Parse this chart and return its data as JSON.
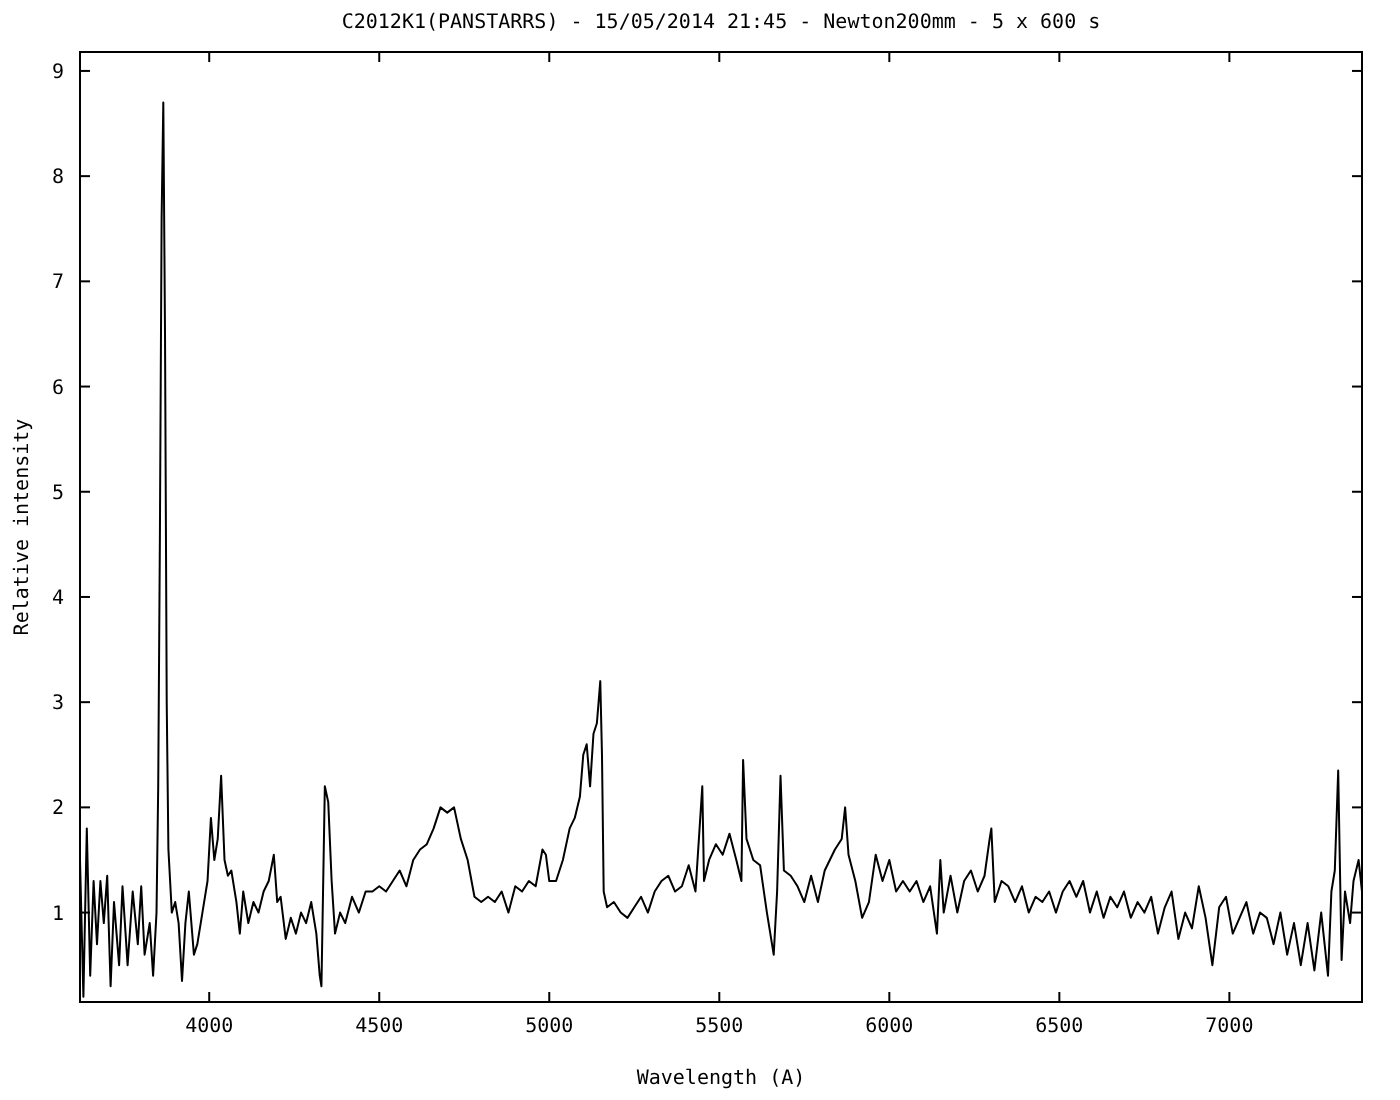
{
  "chart_data": {
    "type": "line",
    "title": "C2012K1(PANSTARRS) - 15/05/2014 21:45 - Newton200mm - 5 x 600 s",
    "xlabel": "Wavelength (A)",
    "ylabel": "Relative intensity",
    "xlim": [
      3620,
      7390
    ],
    "ylim": [
      0.15,
      9.18
    ],
    "xticks": [
      4000,
      4500,
      5000,
      5500,
      6000,
      6500,
      7000
    ],
    "yticks": [
      1,
      2,
      3,
      4,
      5,
      6,
      7,
      8,
      9
    ],
    "grid": false,
    "line_style": "solid",
    "x": [
      3620,
      3630,
      3640,
      3650,
      3660,
      3670,
      3680,
      3690,
      3700,
      3710,
      3720,
      3735,
      3745,
      3760,
      3775,
      3790,
      3800,
      3810,
      3825,
      3835,
      3845,
      3850,
      3855,
      3860,
      3865,
      3870,
      3875,
      3880,
      3890,
      3900,
      3910,
      3920,
      3930,
      3940,
      3955,
      3965,
      3980,
      3995,
      4005,
      4015,
      4025,
      4035,
      4045,
      4055,
      4065,
      4080,
      4090,
      4100,
      4115,
      4130,
      4145,
      4160,
      4175,
      4190,
      4200,
      4210,
      4225,
      4240,
      4255,
      4270,
      4285,
      4300,
      4315,
      4325,
      4330,
      4340,
      4350,
      4360,
      4370,
      4385,
      4400,
      4420,
      4440,
      4460,
      4480,
      4500,
      4520,
      4540,
      4560,
      4580,
      4600,
      4620,
      4640,
      4660,
      4680,
      4700,
      4720,
      4740,
      4760,
      4780,
      4800,
      4820,
      4840,
      4860,
      4880,
      4900,
      4920,
      4940,
      4960,
      4980,
      4990,
      5000,
      5020,
      5040,
      5060,
      5075,
      5090,
      5100,
      5110,
      5120,
      5130,
      5140,
      5150,
      5155,
      5160,
      5170,
      5190,
      5210,
      5230,
      5250,
      5270,
      5290,
      5310,
      5330,
      5350,
      5370,
      5390,
      5410,
      5430,
      5450,
      5455,
      5470,
      5490,
      5510,
      5530,
      5550,
      5565,
      5570,
      5580,
      5600,
      5620,
      5640,
      5660,
      5670,
      5680,
      5690,
      5710,
      5730,
      5750,
      5770,
      5790,
      5810,
      5840,
      5860,
      5870,
      5880,
      5900,
      5920,
      5940,
      5960,
      5980,
      6000,
      6020,
      6040,
      6060,
      6080,
      6100,
      6120,
      6140,
      6150,
      6160,
      6180,
      6200,
      6220,
      6240,
      6260,
      6280,
      6295,
      6300,
      6310,
      6330,
      6350,
      6370,
      6390,
      6410,
      6430,
      6450,
      6470,
      6490,
      6510,
      6530,
      6550,
      6570,
      6590,
      6610,
      6630,
      6650,
      6670,
      6690,
      6710,
      6730,
      6750,
      6770,
      6790,
      6810,
      6830,
      6850,
      6870,
      6890,
      6910,
      6930,
      6950,
      6970,
      6990,
      7010,
      7030,
      7050,
      7070,
      7090,
      7110,
      7130,
      7150,
      7170,
      7190,
      7210,
      7230,
      7250,
      7270,
      7290,
      7300,
      7310,
      7320,
      7330,
      7340,
      7355,
      7365,
      7380,
      7390
    ],
    "series": [
      {
        "color": "#000000",
        "values": [
          1.5,
          0.2,
          1.8,
          0.4,
          1.3,
          0.7,
          1.3,
          0.9,
          1.35,
          0.3,
          1.1,
          0.5,
          1.25,
          0.5,
          1.2,
          0.7,
          1.25,
          0.6,
          0.9,
          0.4,
          1.0,
          2.2,
          4.6,
          7.6,
          8.7,
          6.5,
          3.0,
          1.6,
          1.0,
          1.1,
          0.9,
          0.35,
          0.9,
          1.2,
          0.6,
          0.7,
          1.0,
          1.3,
          1.9,
          1.5,
          1.7,
          2.3,
          1.5,
          1.35,
          1.4,
          1.1,
          0.8,
          1.2,
          0.9,
          1.1,
          1.0,
          1.2,
          1.3,
          1.55,
          1.1,
          1.15,
          0.75,
          0.95,
          0.8,
          1.0,
          0.9,
          1.1,
          0.8,
          0.4,
          0.3,
          2.2,
          2.05,
          1.3,
          0.8,
          1.0,
          0.9,
          1.15,
          1.0,
          1.2,
          1.2,
          1.25,
          1.2,
          1.3,
          1.4,
          1.25,
          1.5,
          1.6,
          1.65,
          1.8,
          2.0,
          1.95,
          2.0,
          1.7,
          1.5,
          1.15,
          1.1,
          1.15,
          1.1,
          1.2,
          1.0,
          1.25,
          1.2,
          1.3,
          1.25,
          1.6,
          1.55,
          1.3,
          1.3,
          1.5,
          1.8,
          1.9,
          2.1,
          2.5,
          2.6,
          2.2,
          2.7,
          2.8,
          3.2,
          2.5,
          1.2,
          1.05,
          1.1,
          1.0,
          0.95,
          1.05,
          1.15,
          1.0,
          1.2,
          1.3,
          1.35,
          1.2,
          1.25,
          1.45,
          1.2,
          2.2,
          1.3,
          1.5,
          1.65,
          1.55,
          1.75,
          1.5,
          1.3,
          2.45,
          1.7,
          1.5,
          1.45,
          1.0,
          0.6,
          1.2,
          2.3,
          1.4,
          1.35,
          1.25,
          1.1,
          1.35,
          1.1,
          1.4,
          1.6,
          1.7,
          2.0,
          1.55,
          1.3,
          0.95,
          1.1,
          1.55,
          1.3,
          1.5,
          1.2,
          1.3,
          1.2,
          1.3,
          1.1,
          1.25,
          0.8,
          1.5,
          1.0,
          1.35,
          1.0,
          1.3,
          1.4,
          1.2,
          1.35,
          1.7,
          1.8,
          1.1,
          1.3,
          1.25,
          1.1,
          1.25,
          1.0,
          1.15,
          1.1,
          1.2,
          1.0,
          1.2,
          1.3,
          1.15,
          1.3,
          1.0,
          1.2,
          0.95,
          1.15,
          1.05,
          1.2,
          0.95,
          1.1,
          1.0,
          1.15,
          0.8,
          1.05,
          1.2,
          0.75,
          1.0,
          0.85,
          1.25,
          0.95,
          0.5,
          1.05,
          1.15,
          0.8,
          0.95,
          1.1,
          0.8,
          1.0,
          0.95,
          0.7,
          1.0,
          0.6,
          0.9,
          0.5,
          0.9,
          0.45,
          1.0,
          0.4,
          1.2,
          1.4,
          2.35,
          0.55,
          1.2,
          0.9,
          1.3,
          1.5,
          1.2
        ]
      }
    ]
  }
}
